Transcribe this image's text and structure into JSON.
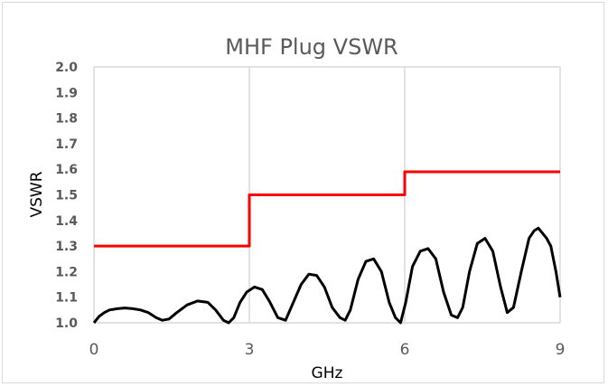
{
  "chart_data": {
    "type": "line",
    "title": "MHF Plug VSWR",
    "xlabel": "GHz",
    "ylabel": "VSWR",
    "xlim": [
      0,
      9
    ],
    "ylim": [
      1.0,
      2.0
    ],
    "x_ticks": [
      "0",
      "3",
      "6",
      "9"
    ],
    "y_ticks": [
      "1.0",
      "1.1",
      "1.2",
      "1.3",
      "1.4",
      "1.5",
      "1.6",
      "1.7",
      "1.8",
      "1.9",
      "2.0"
    ],
    "grid": "vertical gridlines at x ticks",
    "legend": "none",
    "series": [
      {
        "color": "#ff0000",
        "style": "step",
        "x": [
          0,
          3,
          3,
          6,
          6,
          9
        ],
        "y": [
          1.3,
          1.3,
          1.5,
          1.5,
          1.59,
          1.59
        ]
      },
      {
        "color": "#000000",
        "style": "line",
        "x": [
          0,
          0.1,
          0.2,
          0.3,
          0.45,
          0.6,
          0.75,
          0.9,
          1.05,
          1.2,
          1.32,
          1.45,
          1.6,
          1.8,
          2.0,
          2.2,
          2.35,
          2.5,
          2.6,
          2.7,
          2.82,
          2.95,
          3.1,
          3.25,
          3.4,
          3.55,
          3.7,
          3.85,
          4.0,
          4.15,
          4.3,
          4.45,
          4.6,
          4.75,
          4.85,
          4.95,
          5.1,
          5.25,
          5.4,
          5.55,
          5.7,
          5.82,
          5.92,
          6.02,
          6.15,
          6.3,
          6.45,
          6.6,
          6.75,
          6.9,
          7.02,
          7.12,
          7.25,
          7.4,
          7.55,
          7.7,
          7.85,
          7.98,
          8.1,
          8.25,
          8.4,
          8.5,
          8.58,
          8.66,
          8.74,
          8.82,
          8.92,
          9.0
        ],
        "y": [
          1.0,
          1.025,
          1.04,
          1.05,
          1.055,
          1.058,
          1.055,
          1.05,
          1.04,
          1.02,
          1.01,
          1.015,
          1.04,
          1.07,
          1.085,
          1.08,
          1.05,
          1.01,
          1.0,
          1.02,
          1.08,
          1.12,
          1.14,
          1.13,
          1.08,
          1.02,
          1.01,
          1.08,
          1.15,
          1.19,
          1.185,
          1.14,
          1.06,
          1.02,
          1.01,
          1.05,
          1.17,
          1.24,
          1.25,
          1.2,
          1.08,
          1.02,
          1.0,
          1.08,
          1.22,
          1.28,
          1.29,
          1.25,
          1.12,
          1.03,
          1.02,
          1.06,
          1.2,
          1.31,
          1.33,
          1.28,
          1.14,
          1.04,
          1.06,
          1.2,
          1.33,
          1.36,
          1.37,
          1.35,
          1.33,
          1.3,
          1.2,
          1.1
        ]
      }
    ]
  }
}
